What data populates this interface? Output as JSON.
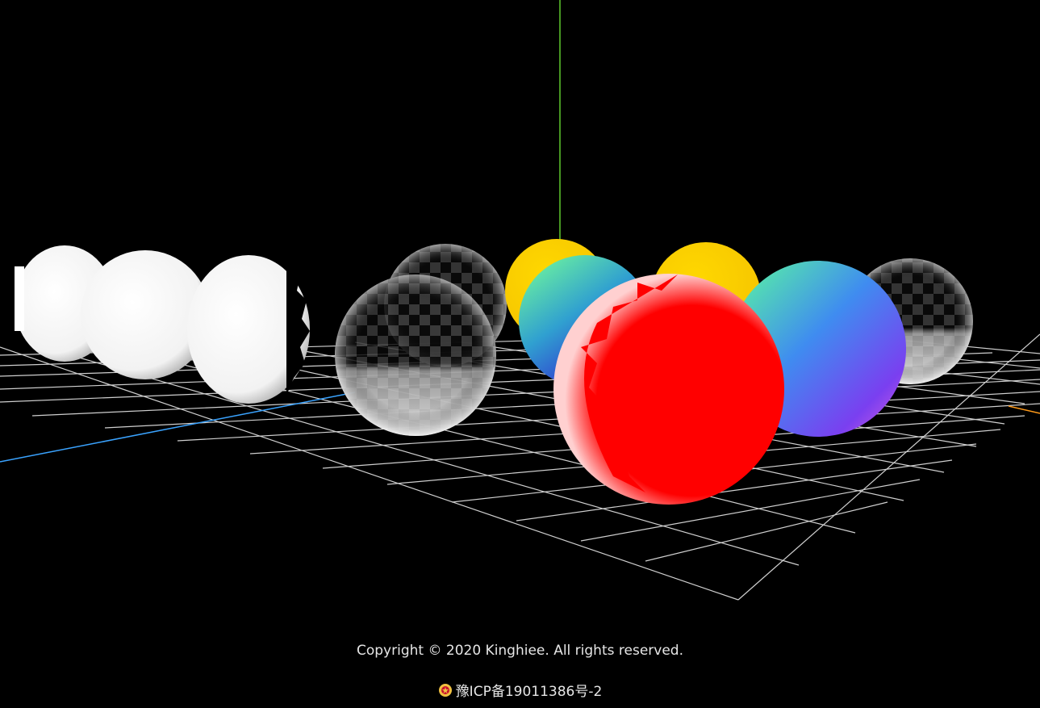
{
  "footer": {
    "copyright": "Copyright © 2020 Kinghiee. All rights reserved.",
    "icp": "豫ICP备19011386号-2"
  },
  "icons": {
    "police_badge": "police-emblem-icon"
  },
  "colors": {
    "background": "#000000",
    "grid": "#cfcfcf",
    "axis_y": "#5fc92e",
    "axis_z": "#3aa3ff",
    "axis_x": "#ff9a1a",
    "sphere_red": "#ff0000",
    "sphere_yellow": "#ffd000",
    "sphere_white": "#ffffff"
  }
}
